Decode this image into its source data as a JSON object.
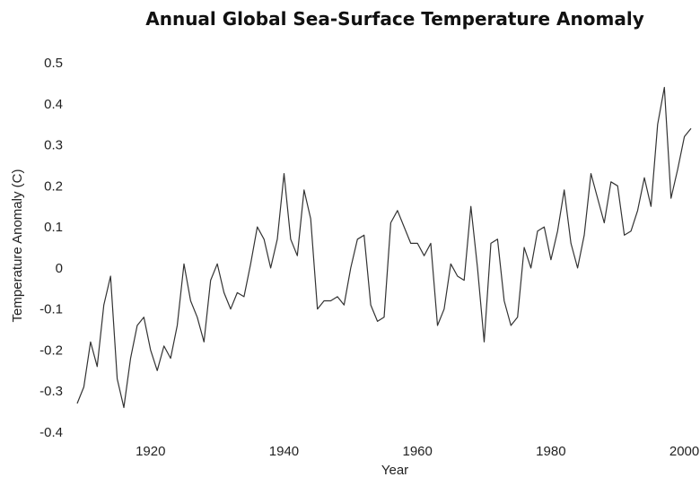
{
  "chart_data": {
    "type": "line",
    "title": "Annual Global Sea-Surface Temperature Anomaly",
    "xlabel": "Year",
    "ylabel": "Temperature Anomaly (C)",
    "xlim": [
      1909,
      2001
    ],
    "ylim": [
      -0.4,
      0.5
    ],
    "x_ticks": [
      "1920",
      "1940",
      "1960",
      "1980",
      "2000"
    ],
    "y_ticks": [
      "0.5",
      "0.4",
      "0.3",
      "0.2",
      "0.1",
      "0",
      "-0.1",
      "-0.2",
      "-0.3",
      "-0.4"
    ],
    "grid": false,
    "series": [
      {
        "color": "#333333",
        "x": [
          1909,
          1910,
          1911,
          1912,
          1913,
          1914,
          1915,
          1916,
          1917,
          1918,
          1919,
          1920,
          1921,
          1922,
          1923,
          1924,
          1925,
          1926,
          1927,
          1928,
          1929,
          1930,
          1931,
          1932,
          1933,
          1934,
          1935,
          1936,
          1937,
          1938,
          1939,
          1940,
          1941,
          1942,
          1943,
          1944,
          1945,
          1946,
          1947,
          1948,
          1949,
          1950,
          1951,
          1952,
          1953,
          1954,
          1955,
          1956,
          1957,
          1958,
          1959,
          1960,
          1961,
          1962,
          1963,
          1964,
          1965,
          1966,
          1967,
          1968,
          1969,
          1970,
          1971,
          1972,
          1973,
          1974,
          1975,
          1976,
          1977,
          1978,
          1979,
          1980,
          1981,
          1982,
          1983,
          1984,
          1985,
          1986,
          1987,
          1988,
          1989,
          1990,
          1991,
          1992,
          1993,
          1994,
          1995,
          1996,
          1997,
          1998,
          1999,
          2000,
          2001
        ],
        "values": [
          -0.33,
          -0.29,
          -0.18,
          -0.24,
          -0.09,
          -0.02,
          -0.27,
          -0.34,
          -0.22,
          -0.14,
          -0.12,
          -0.2,
          -0.25,
          -0.19,
          -0.22,
          -0.14,
          0.01,
          -0.08,
          -0.12,
          -0.18,
          -0.03,
          0.01,
          -0.06,
          -0.1,
          -0.06,
          -0.07,
          0.01,
          0.1,
          0.07,
          0.0,
          0.07,
          0.23,
          0.07,
          0.03,
          0.19,
          0.12,
          -0.1,
          -0.08,
          -0.08,
          -0.07,
          -0.09,
          0.0,
          0.07,
          0.08,
          -0.09,
          -0.13,
          -0.12,
          0.11,
          0.14,
          0.1,
          0.06,
          0.06,
          0.03,
          0.06,
          -0.14,
          -0.1,
          0.01,
          -0.02,
          -0.03,
          0.15,
          0.0,
          -0.18,
          0.06,
          0.07,
          -0.08,
          -0.14,
          -0.12,
          0.05,
          0.0,
          0.09,
          0.1,
          0.02,
          0.09,
          0.19,
          0.06,
          0.0,
          0.08,
          0.23,
          0.17,
          0.11,
          0.21,
          0.2,
          0.08,
          0.09,
          0.14,
          0.22,
          0.15,
          0.35,
          0.44,
          0.17,
          0.24,
          0.32,
          0.34
        ]
      }
    ]
  }
}
